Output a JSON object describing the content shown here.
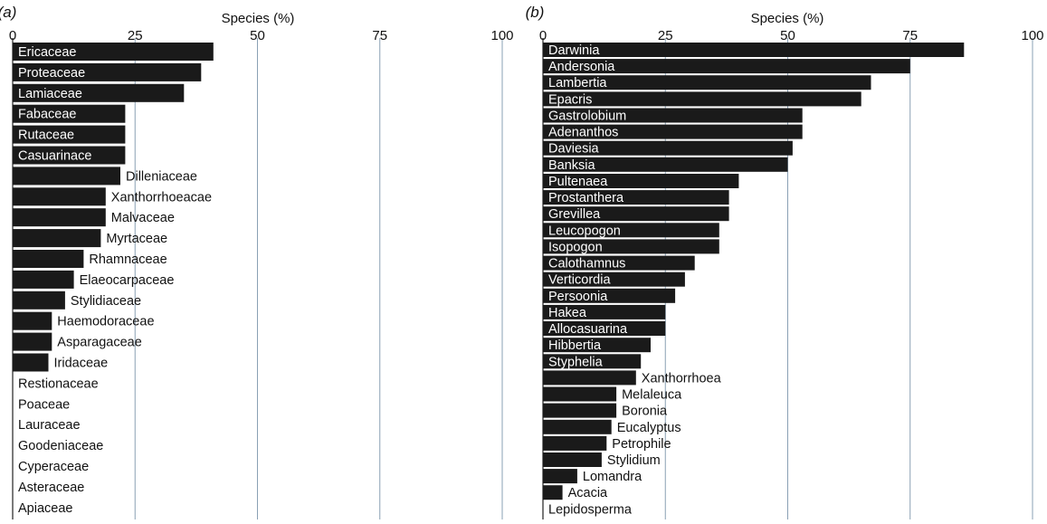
{
  "chart_data": [
    {
      "panel": "a",
      "panel_label": "(a)",
      "type": "bar",
      "orientation": "horizontal",
      "title": "",
      "xlabel": "Species (%)",
      "ylabel": "",
      "xlim": [
        0,
        100
      ],
      "xticks": [
        0,
        25,
        50,
        75,
        100
      ],
      "grid": true,
      "categories": [
        "Ericaceae",
        "Proteaceae",
        "Lamiaceae",
        "Fabaceae",
        "Rutaceae",
        "Casuarinace",
        "Dilleniaceae",
        "Xanthorrhoeacae",
        "Malvaceae",
        "Myrtaceae",
        "Rhamnaceae",
        "Elaeocarpaceae",
        "Stylidiaceae",
        "Haemodoraceae",
        "Asparagaceae",
        "Iridaceae",
        "Restionaceae",
        "Poaceae",
        "Lauraceae",
        "Goodeniaceae",
        "Cyperaceae",
        "Asteraceae",
        "Apiaceae"
      ],
      "values": [
        41,
        38.5,
        35,
        23,
        23,
        23,
        22,
        19,
        19,
        18,
        14.5,
        12.5,
        10.7,
        8,
        8,
        7.3,
        0,
        0,
        0,
        0,
        0,
        0,
        0
      ]
    },
    {
      "panel": "b",
      "panel_label": "(b)",
      "type": "bar",
      "orientation": "horizontal",
      "title": "",
      "xlabel": "Species (%)",
      "ylabel": "",
      "xlim": [
        0,
        100
      ],
      "xticks": [
        0,
        25,
        50,
        75,
        100
      ],
      "grid": true,
      "categories": [
        "Darwinia",
        "Andersonia",
        "Lambertia",
        "Epacris",
        "Gastrolobium",
        "Adenanthos",
        "Daviesia",
        "Banksia",
        "Pultenaea",
        "Prostanthera",
        "Grevillea",
        "Leucopogon",
        "Isopogon",
        "Calothamnus",
        "Verticordia",
        "Persoonia",
        "Hakea",
        "Allocasuarina",
        "Hibbertia",
        "Styphelia",
        "Xanthorrhoea",
        "Melaleuca",
        "Boronia",
        "Eucalyptus",
        "Petrophile",
        "Stylidium",
        "Lomandra",
        "Acacia",
        "Lepidosperma"
      ],
      "values": [
        86,
        75,
        67,
        65,
        53,
        53,
        51,
        50,
        40,
        38,
        38,
        36,
        36,
        31,
        29,
        27,
        25,
        25,
        22,
        20,
        19,
        15,
        15,
        14,
        13,
        12,
        7,
        4,
        0
      ]
    }
  ]
}
